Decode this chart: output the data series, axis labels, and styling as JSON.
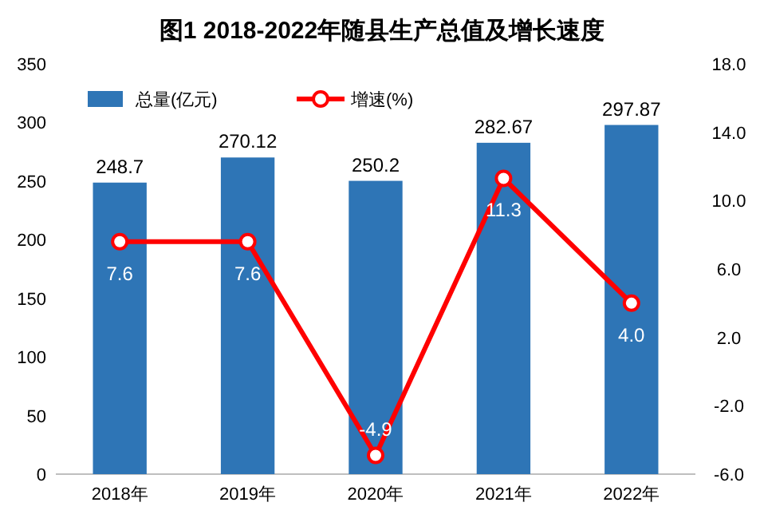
{
  "chart_data": {
    "type": "bar",
    "title": "图1  2018-2022年随县生产总值及增长速度",
    "categories": [
      "2018年",
      "2019年",
      "2020年",
      "2021年",
      "2022年"
    ],
    "series": [
      {
        "name": "总量(亿元)",
        "color": "#2e75b6",
        "values": [
          248.7,
          270.12,
          250.2,
          282.67,
          297.87
        ]
      },
      {
        "name": "增速(%)",
        "type": "line",
        "axis": "y2",
        "color": "#ff0000",
        "marker": "circle",
        "line_style": "solid",
        "values": [
          7.6,
          7.6,
          -4.9,
          11.3,
          4.0
        ],
        "value_labels": [
          "7.6",
          "7.6",
          "-4.9",
          "11.3",
          "4.0"
        ]
      }
    ],
    "ylim": [
      0,
      350
    ],
    "yticks": [
      0,
      50,
      100,
      150,
      200,
      250,
      300,
      350
    ],
    "y2lim": [
      -6,
      18
    ],
    "y2ticks": [
      {
        "value": -6,
        "label": "-6.0"
      },
      {
        "value": -2,
        "label": "-2.0"
      },
      {
        "value": 2,
        "label": "2.0"
      },
      {
        "value": 6,
        "label": "6.0"
      },
      {
        "value": 10,
        "label": "10.0"
      },
      {
        "value": 14,
        "label": "14.0"
      },
      {
        "value": 18,
        "label": "18.0"
      }
    ],
    "data_labels": true,
    "legend": "top left"
  }
}
